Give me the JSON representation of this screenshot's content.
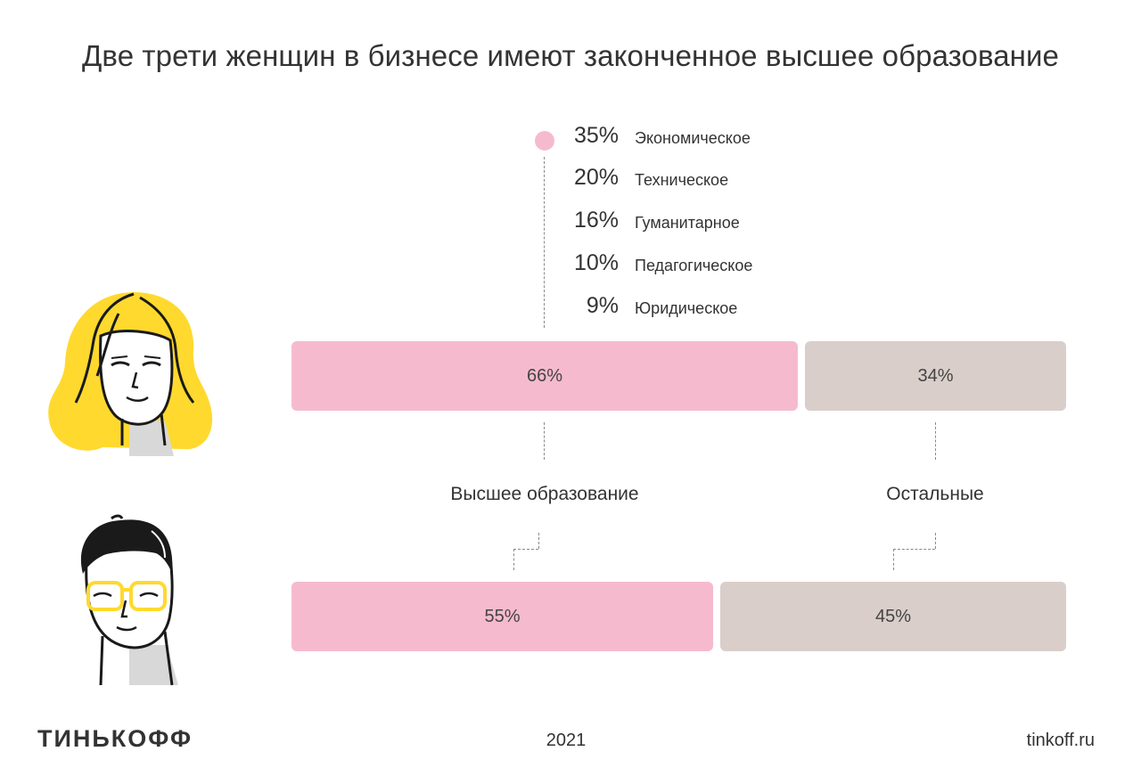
{
  "title": "Две трети женщин в бизнесе имеют законченное высшее образование",
  "breakdown": [
    {
      "pct": "35%",
      "label": "Экономическое"
    },
    {
      "pct": "20%",
      "label": "Техническое"
    },
    {
      "pct": "16%",
      "label": "Гуманитарное"
    },
    {
      "pct": "10%",
      "label": "Педагогическое"
    },
    {
      "pct": "9%",
      "label": "Юридическое"
    }
  ],
  "chart_data": {
    "type": "bar",
    "orientation": "horizontal-stacked",
    "title": "Две трети женщин в бизнесе имеют законченное высшее образование",
    "categories": [
      "Высшее образование",
      "Остальные"
    ],
    "series": [
      {
        "group": "women",
        "values": [
          66,
          34
        ],
        "labels": [
          "66%",
          "34%"
        ]
      },
      {
        "group": "men",
        "values": [
          55,
          45
        ],
        "labels": [
          "55%",
          "45%"
        ]
      }
    ],
    "breakdown_of_higher_education_women": {
      "categories": [
        "Экономическое",
        "Техническое",
        "Гуманитарное",
        "Педагогическое",
        "Юридическое"
      ],
      "values": [
        35,
        20,
        16,
        10,
        9
      ]
    },
    "colors": {
      "higher": "#f6bace",
      "other": "#d9ceca"
    }
  },
  "labels": {
    "higher": "Высшее образование",
    "other": "Остальные"
  },
  "colors": {
    "pink": "#f6bace",
    "beige": "#d9ceca",
    "yellow": "#ffd92e",
    "dark": "#1a1a1a"
  },
  "icons": [
    "woman-illustration",
    "man-illustration"
  ],
  "footer": {
    "logo": "ТИНЬКОФФ",
    "year": "2021",
    "site": "tinkoff.ru"
  }
}
